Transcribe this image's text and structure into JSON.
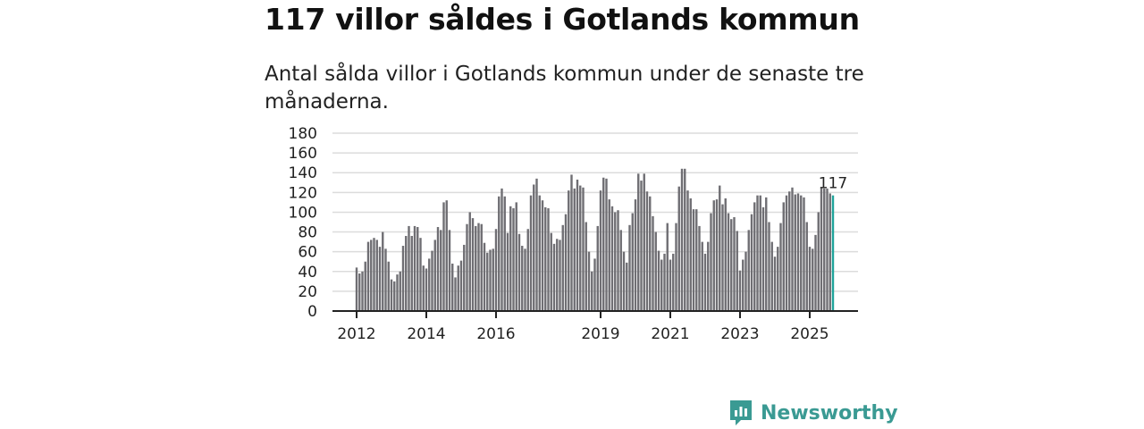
{
  "title": "117 villor såldes i Gotlands kommun",
  "subtitle": "Antal sålda villor i Gotlands kommun under de senaste tre månaderna.",
  "logo": "Newsworthy",
  "colors": {
    "bar": "#6f6e73",
    "highlight": "#1fa39a",
    "logo": "#3a9a93"
  },
  "chart_data": {
    "type": "bar",
    "title": "117 villor såldes i Gotlands kommun",
    "xlabel": "",
    "ylabel": "",
    "start": "2012-01",
    "ylim": [
      0,
      180
    ],
    "yticks": [
      0,
      20,
      40,
      60,
      80,
      100,
      120,
      140,
      160,
      180
    ],
    "xticks": [
      "2012",
      "2014",
      "2016",
      "2019",
      "2021",
      "2023",
      "2025"
    ],
    "annotation": "117",
    "grid": true,
    "values": [
      44,
      38,
      40,
      50,
      70,
      72,
      74,
      72,
      65,
      80,
      63,
      50,
      32,
      30,
      37,
      40,
      66,
      76,
      86,
      76,
      86,
      85,
      74,
      46,
      43,
      53,
      61,
      72,
      85,
      82,
      110,
      112,
      82,
      48,
      34,
      46,
      51,
      67,
      88,
      100,
      94,
      86,
      89,
      88,
      69,
      59,
      62,
      63,
      83,
      116,
      124,
      116,
      79,
      106,
      104,
      110,
      78,
      66,
      63,
      83,
      117,
      128,
      134,
      117,
      112,
      105,
      104,
      79,
      68,
      73,
      72,
      87,
      98,
      122,
      138,
      124,
      133,
      127,
      125,
      90,
      60,
      40,
      53,
      86,
      122,
      135,
      134,
      113,
      106,
      100,
      102,
      82,
      60,
      49,
      87,
      99,
      113,
      139,
      132,
      139,
      121,
      116,
      96,
      80,
      61,
      52,
      58,
      89,
      52,
      58,
      89,
      126,
      144,
      144,
      122,
      114,
      103,
      103,
      86,
      70,
      58,
      70,
      99,
      112,
      113,
      127,
      108,
      114,
      99,
      93,
      95,
      81,
      41,
      52,
      60,
      82,
      98,
      110,
      117,
      117,
      105,
      115,
      90,
      70,
      55,
      65,
      89,
      110,
      117,
      121,
      125,
      118,
      119,
      117,
      115,
      90,
      65,
      63,
      77,
      100,
      125,
      124,
      124,
      119,
      117
    ]
  }
}
